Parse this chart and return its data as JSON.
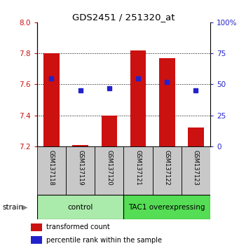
{
  "title": "GDS2451 / 251320_at",
  "samples": [
    "GSM137118",
    "GSM137119",
    "GSM137120",
    "GSM137121",
    "GSM137122",
    "GSM137123"
  ],
  "bar_base": 7.2,
  "bar_tops": [
    7.8,
    7.21,
    7.4,
    7.82,
    7.77,
    7.32
  ],
  "percentile_values": [
    55,
    45,
    47,
    55,
    52,
    45
  ],
  "ylim_left": [
    7.2,
    8.0
  ],
  "ylim_right": [
    0,
    100
  ],
  "yticks_left": [
    7.2,
    7.4,
    7.6,
    7.8,
    8.0
  ],
  "yticks_right": [
    0,
    25,
    50,
    75,
    100
  ],
  "groups": [
    {
      "label": "control",
      "samples_idx": [
        0,
        1,
        2
      ],
      "color": "#aaeaaa"
    },
    {
      "label": "TAC1 overexpressing",
      "samples_idx": [
        3,
        4,
        5
      ],
      "color": "#55dd55"
    }
  ],
  "bar_color": "#cc1111",
  "marker_color": "#2222cc",
  "tick_label_color_left": "#cc1111",
  "tick_label_color_right": "#2222cc",
  "legend_items": [
    {
      "label": "transformed count",
      "color": "#cc1111"
    },
    {
      "label": "percentile rank within the sample",
      "color": "#2222cc"
    }
  ],
  "strain_label": "strain",
  "bar_width": 0.55,
  "sample_box_color": "#c8c8c8",
  "grid_dotted_vals": [
    7.4,
    7.6,
    7.8
  ]
}
